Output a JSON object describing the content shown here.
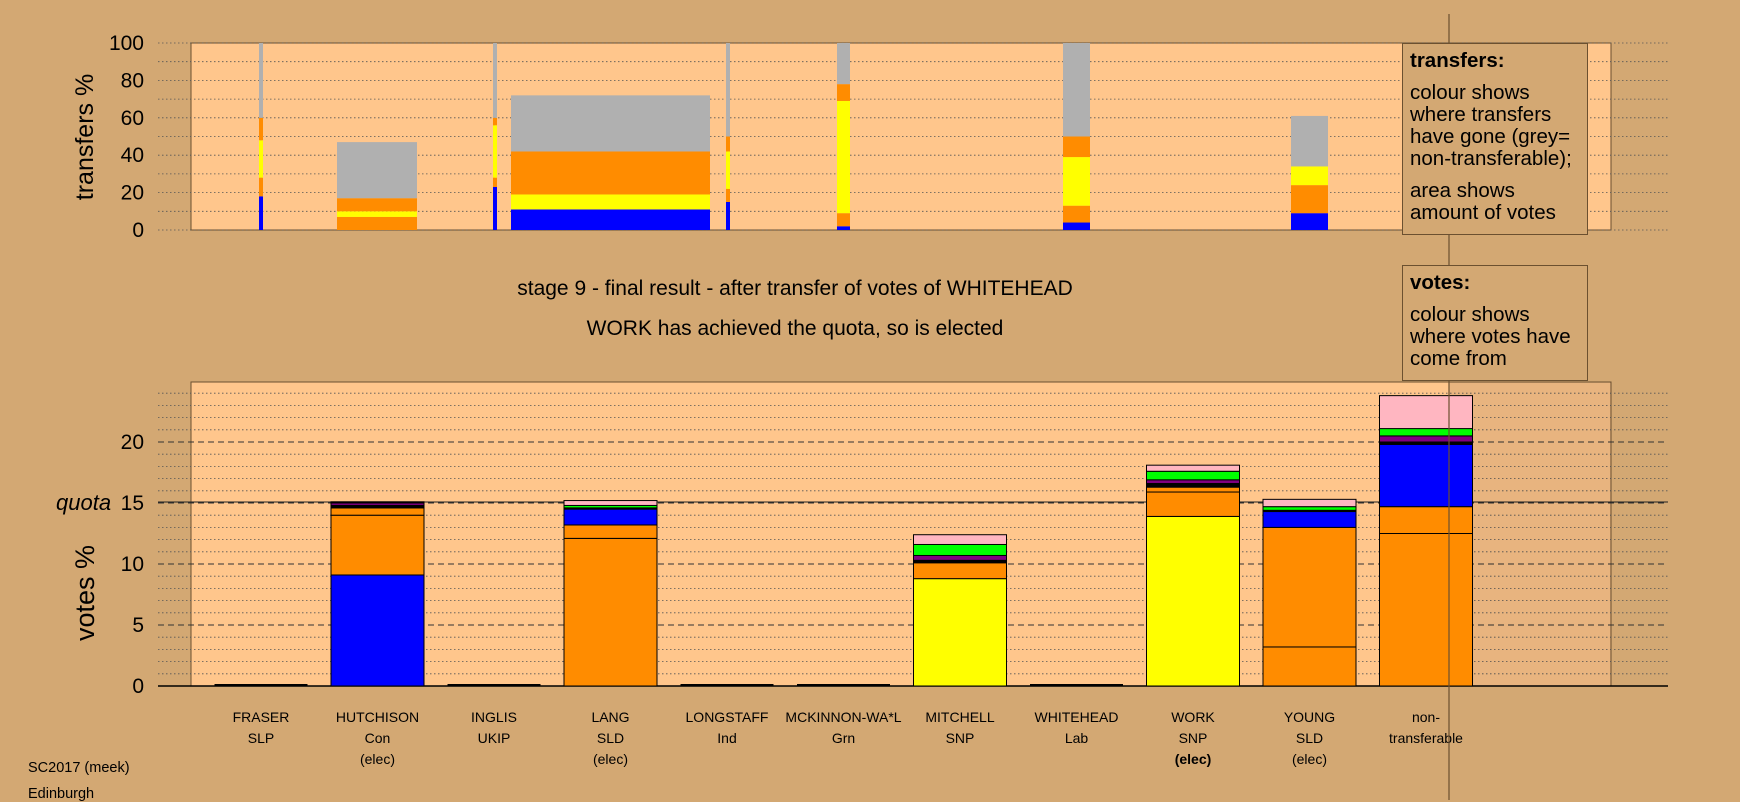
{
  "colors": {
    "background": "#d3a873",
    "plot_area": "#ffc68c",
    "con": "#0000ff",
    "sld": "#ff8c00",
    "snp": "#ffff00",
    "grn": "#00ff00",
    "lab": "#ffb6c1",
    "ukip": "#800080",
    "non_transferable": "#b0b0b0",
    "other": "#000000"
  },
  "titles": {
    "stage": "stage 9 - final result - after transfer of votes of WHITEHEAD",
    "status": "WORK has achieved the quota, so is elected"
  },
  "legends": {
    "transfers": {
      "heading": "transfers:",
      "text1": "colour shows where transfers have gone (grey= non-transferable);",
      "text2": "area shows amount of votes"
    },
    "votes": {
      "heading": "votes:",
      "text1": "colour shows where votes have come from"
    }
  },
  "footer": {
    "line1": "SC2017 (meek)",
    "line2": "Edinburgh"
  },
  "chart_data": [
    {
      "type": "bar",
      "ylabel": "transfers %",
      "ylim": [
        0,
        100
      ],
      "yticks": [
        0,
        20,
        40,
        60,
        80,
        100
      ],
      "grid": "dotted horizontal lines every 10",
      "bars": [
        {
          "candidate": "FRASER",
          "segments": [
            {
              "party": "con",
              "value": 18
            },
            {
              "party": "sld",
              "value": 10
            },
            {
              "party": "snp",
              "value": 20
            },
            {
              "party": "sld",
              "value": 12
            },
            {
              "party": "non_transferable",
              "value": 40
            }
          ]
        },
        {
          "candidate": "HUTCHISON",
          "segments": [
            {
              "party": "sld",
              "value": 7
            },
            {
              "party": "snp",
              "value": 3
            },
            {
              "party": "sld",
              "value": 7
            },
            {
              "party": "non_transferable",
              "value": 30
            }
          ]
        },
        {
          "candidate": "INGLIS",
          "segments": [
            {
              "party": "con",
              "value": 23
            },
            {
              "party": "sld",
              "value": 5
            },
            {
              "party": "snp",
              "value": 28
            },
            {
              "party": "sld",
              "value": 4
            },
            {
              "party": "non_transferable",
              "value": 40
            }
          ]
        },
        {
          "candidate": "LANG",
          "segments": [
            {
              "party": "con",
              "value": 11
            },
            {
              "party": "snp",
              "value": 8
            },
            {
              "party": "sld",
              "value": 23
            },
            {
              "party": "non_transferable",
              "value": 30
            }
          ]
        },
        {
          "candidate": "LONGSTAFF",
          "segments": [
            {
              "party": "con",
              "value": 15
            },
            {
              "party": "sld",
              "value": 7
            },
            {
              "party": "snp",
              "value": 20
            },
            {
              "party": "sld",
              "value": 8
            },
            {
              "party": "non_transferable",
              "value": 50
            }
          ]
        },
        {
          "candidate": "MCKINNON-WA*L",
          "segments": [
            {
              "party": "con",
              "value": 2
            },
            {
              "party": "sld",
              "value": 7
            },
            {
              "party": "snp",
              "value": 60
            },
            {
              "party": "sld",
              "value": 9
            },
            {
              "party": "non_transferable",
              "value": 22
            }
          ]
        },
        {
          "candidate": "WHITEHEAD",
          "segments": [
            {
              "party": "con",
              "value": 4
            },
            {
              "party": "sld",
              "value": 9
            },
            {
              "party": "snp",
              "value": 26
            },
            {
              "party": "sld",
              "value": 11
            },
            {
              "party": "non_transferable",
              "value": 50
            }
          ]
        },
        {
          "candidate": "YOUNG",
          "segments": [
            {
              "party": "con",
              "value": 9
            },
            {
              "party": "sld",
              "value": 15
            },
            {
              "party": "snp",
              "value": 10
            },
            {
              "party": "non_transferable",
              "value": 27
            }
          ]
        }
      ]
    },
    {
      "type": "bar",
      "ylabel": "votes %",
      "ylim": [
        0,
        25
      ],
      "yticks": [
        0,
        5,
        10,
        15,
        20
      ],
      "quota": 15,
      "quota_label": "quota",
      "grid": "dotted horizontal lines every 1, dashed every 5",
      "categories": [
        {
          "name": "FRASER",
          "party": "SLP",
          "status": ""
        },
        {
          "name": "HUTCHISON",
          "party": "Con",
          "status": "(elec)"
        },
        {
          "name": "INGLIS",
          "party": "UKIP",
          "status": ""
        },
        {
          "name": "LANG",
          "party": "SLD",
          "status": "(elec)"
        },
        {
          "name": "LONGSTAFF",
          "party": "Ind",
          "status": ""
        },
        {
          "name": "MCKINNON-WA*L",
          "party": "Grn",
          "status": ""
        },
        {
          "name": "MITCHELL",
          "party": "SNP",
          "status": ""
        },
        {
          "name": "WHITEHEAD",
          "party": "Lab",
          "status": ""
        },
        {
          "name": "WORK",
          "party": "SNP",
          "status": "(elec)"
        },
        {
          "name": "YOUNG",
          "party": "SLD",
          "status": "(elec)"
        },
        {
          "name": "non-",
          "party": "transferable",
          "status": ""
        }
      ],
      "bars": [
        {
          "candidate": "FRASER",
          "segments": []
        },
        {
          "candidate": "HUTCHISON",
          "segments": [
            {
              "party": "con",
              "value": 9.1
            },
            {
              "party": "sld",
              "value": 4.9
            },
            {
              "party": "sld",
              "value": 0.6
            },
            {
              "party": "other",
              "value": 0.2
            },
            {
              "party": "ukip",
              "value": 0.2
            },
            {
              "party": "other",
              "value": 0.1
            }
          ]
        },
        {
          "candidate": "INGLIS",
          "segments": []
        },
        {
          "candidate": "LANG",
          "segments": [
            {
              "party": "sld",
              "value": 12.1
            },
            {
              "party": "sld",
              "value": 1.1
            },
            {
              "party": "con",
              "value": 1.3
            },
            {
              "party": "other",
              "value": 0.1
            },
            {
              "party": "grn",
              "value": 0.2
            },
            {
              "party": "lab",
              "value": 0.4
            }
          ]
        },
        {
          "candidate": "LONGSTAFF",
          "segments": []
        },
        {
          "candidate": "MCKINNON-WA*L",
          "segments": []
        },
        {
          "candidate": "MITCHELL",
          "segments": [
            {
              "party": "snp",
              "value": 8.8
            },
            {
              "party": "sld",
              "value": 1.3
            },
            {
              "party": "other",
              "value": 0.2
            },
            {
              "party": "ukip",
              "value": 0.4
            },
            {
              "party": "grn",
              "value": 0.9
            },
            {
              "party": "lab",
              "value": 0.8
            }
          ]
        },
        {
          "candidate": "WHITEHEAD",
          "segments": []
        },
        {
          "candidate": "WORK",
          "segments": [
            {
              "party": "snp",
              "value": 13.9
            },
            {
              "party": "sld",
              "value": 2.0
            },
            {
              "party": "sld",
              "value": 0.4
            },
            {
              "party": "other",
              "value": 0.3
            },
            {
              "party": "ukip",
              "value": 0.3
            },
            {
              "party": "grn",
              "value": 0.7
            },
            {
              "party": "lab",
              "value": 0.5
            }
          ]
        },
        {
          "candidate": "YOUNG",
          "segments": [
            {
              "party": "sld",
              "value": 3.2
            },
            {
              "party": "sld",
              "value": 9.8
            },
            {
              "party": "con",
              "value": 1.3
            },
            {
              "party": "other",
              "value": 0.1
            },
            {
              "party": "grn",
              "value": 0.3
            },
            {
              "party": "lab",
              "value": 0.6
            }
          ]
        },
        {
          "candidate": "non-transferable",
          "segments": [
            {
              "party": "sld",
              "value": 12.5
            },
            {
              "party": "sld",
              "value": 2.2
            },
            {
              "party": "con",
              "value": 5.1
            },
            {
              "party": "other",
              "value": 0.2
            },
            {
              "party": "ukip",
              "value": 0.5
            },
            {
              "party": "grn",
              "value": 0.6
            },
            {
              "party": "lab",
              "value": 2.7
            }
          ]
        }
      ]
    }
  ]
}
